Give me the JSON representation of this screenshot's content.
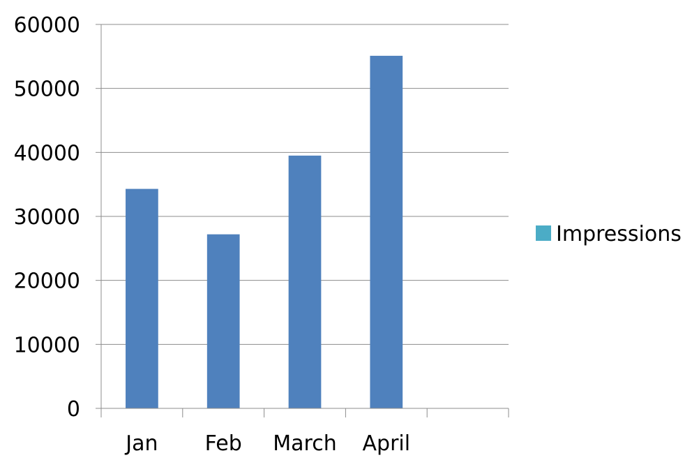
{
  "chart_data": {
    "type": "bar",
    "categories": [
      "Jan",
      "Feb",
      "March",
      "April",
      ""
    ],
    "series": [
      {
        "name": "Impressions",
        "values": [
          34300,
          27200,
          39500,
          55100,
          null
        ],
        "bar_color": "#4f81bd",
        "legend_color": "#4bacc6"
      }
    ],
    "y_ticks": [
      "0",
      "10000",
      "20000",
      "30000",
      "40000",
      "50000",
      "60000"
    ],
    "ylim": [
      0,
      60000
    ],
    "ystep": 10000,
    "grid": true,
    "legend_position": "right"
  }
}
